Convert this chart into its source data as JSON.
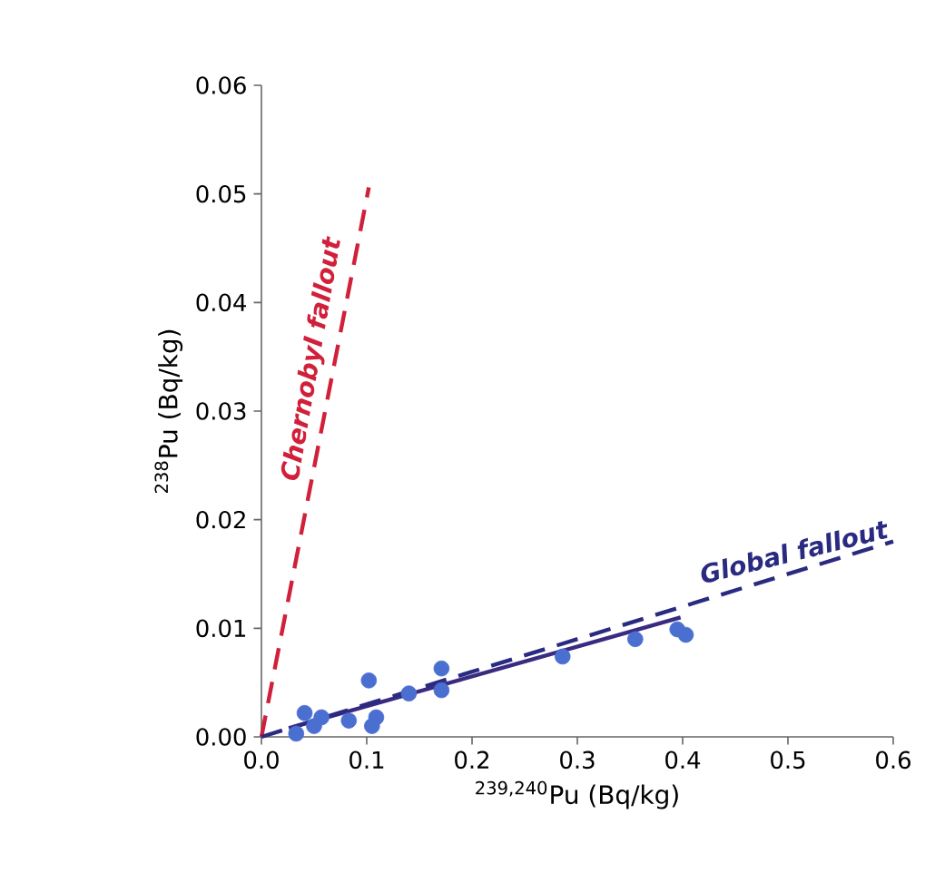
{
  "chart_data": {
    "type": "scatter",
    "xlabel": "$^{239,240}$Pu (Bq/kg)",
    "ylabel": "$^{238}$Pu (Bq/kg)",
    "xlim": [
      0,
      0.6
    ],
    "ylim": [
      0,
      0.06
    ],
    "xticks": [
      {
        "value": 0,
        "label": "0.0"
      },
      {
        "value": 0.1,
        "label": "0.1"
      },
      {
        "value": 0.2,
        "label": "0.2"
      },
      {
        "value": 0.3,
        "label": "0.3"
      },
      {
        "value": 0.4,
        "label": "0.4"
      },
      {
        "value": 0.5,
        "label": "0.5"
      },
      {
        "value": 0.6,
        "label": "0.6"
      }
    ],
    "yticks": [
      {
        "value": 0,
        "label": "0.00"
      },
      {
        "value": 0.01,
        "label": "0.01"
      },
      {
        "value": 0.02,
        "label": "0.02"
      },
      {
        "value": 0.03,
        "label": "0.03"
      },
      {
        "value": 0.04,
        "label": "0.04"
      },
      {
        "value": 0.05,
        "label": "0.05"
      },
      {
        "value": 0.06,
        "label": "0.06"
      }
    ],
    "grid": false,
    "series": [
      {
        "color": "#4a6fd0",
        "x": [
          0.033,
          0.041,
          0.057,
          0.05,
          0.083,
          0.109,
          0.105,
          0.102,
          0.14,
          0.171,
          0.171,
          0.286,
          0.355,
          0.395,
          0.403
        ],
        "values": [
          0.0003,
          0.0022,
          0.0018,
          0.001,
          0.0015,
          0.0018,
          0.001,
          0.0052,
          0.004,
          0.0063,
          0.0043,
          0.0074,
          0.009,
          0.0099,
          0.0094
        ]
      },
      {
        "type": "line",
        "color": "#3a2a80",
        "line_style": "solid",
        "marker": "none",
        "x": [
          0.026,
          0.398
        ],
        "values": [
          0.0008,
          0.011
        ]
      },
      {
        "type": "line",
        "color": "#d0203a",
        "line_style": "dashed",
        "marker": "none",
        "x": [
          0,
          0.102
        ],
        "values": [
          0,
          0.0506
        ]
      },
      {
        "type": "line",
        "color": "#2a2a80",
        "line_style": "dashed",
        "marker": "none",
        "x": [
          0,
          0.6
        ],
        "values": [
          0,
          0.018
        ]
      }
    ],
    "annotations": [
      "Chernobyl fallout",
      "Global fallout"
    ]
  }
}
